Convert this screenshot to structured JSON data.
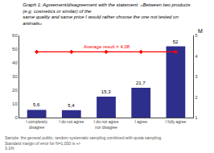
{
  "chart_data": {
    "type": "bar",
    "title": "Graph 1: Agreement/disagreement with the statement: «Between two products (e.g. cosmetics or similar) of the",
    "subtitle": "same quality and same price I would rather choose the one not tested on animals»",
    "categories": [
      "I completely\ndisagree",
      "I do not agree",
      "I do not agree\nnor disagree",
      "I agree",
      "I fully agree"
    ],
    "series": [
      {
        "type": "bar",
        "values": [
          5.6,
          5.4,
          15.3,
          21.7,
          52
        ],
        "value_labels": [
          "5,6",
          "5,4",
          "15,3",
          "21,7",
          "52"
        ],
        "color": "#2e2e8c"
      },
      {
        "name": "Average result = 4,08",
        "type": "line",
        "values": [
          48.0,
          48.0,
          48.0,
          48.0,
          48.0
        ],
        "color": "red",
        "marker": "diamond",
        "line_style": "solid"
      }
    ],
    "ylim": [
      0,
      60
    ],
    "yticks": [
      0,
      10,
      20,
      30,
      40,
      50,
      60
    ],
    "y2lim": [
      1,
      5
    ],
    "y2ticks": [
      1,
      2,
      3,
      4,
      5
    ],
    "y2label": "M",
    "footnote": "Sample: the general public; random systematic sampling combined with quota sampling. Standard margin of error for N=1,000 is +/-\n3.1%",
    "data_labels": true,
    "grid": false
  }
}
